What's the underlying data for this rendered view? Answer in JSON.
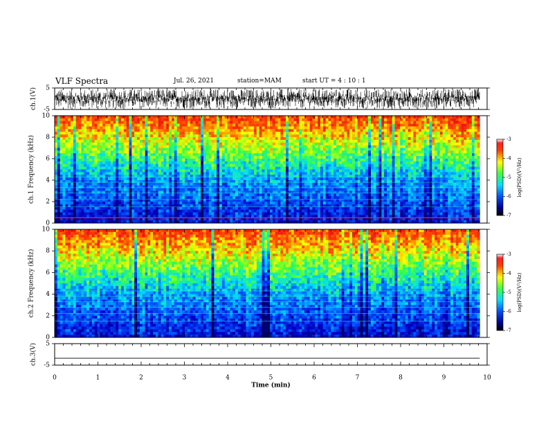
{
  "header": {
    "title": "VLF Spectra",
    "date": "Jul. 26, 2021",
    "station": "station=MAM",
    "start": "start UT =  4 : 10 : 1"
  },
  "chart_data": [
    {
      "type": "line",
      "panel": "ch1-waveform",
      "ylabel": "ch.1(V)",
      "ylim": [
        -5,
        5
      ],
      "yticks": [
        "5",
        "-5"
      ],
      "xlim": [
        0,
        10
      ],
      "data_end_min": 9.83,
      "signal": "dense noise"
    },
    {
      "type": "heatmap",
      "panel": "ch1-spectrogram",
      "ylabel": "ch.1 Frequency (kHz)",
      "ylim": [
        0,
        10
      ],
      "yticks": [
        "0",
        "2",
        "4",
        "6",
        "8",
        "10"
      ],
      "xlim": [
        0,
        10
      ],
      "data_end_min": 9.83,
      "colorbar": {
        "label": "log(PSD)(V²/Hz)",
        "range": [
          -7,
          -3
        ],
        "ticks": [
          "-3",
          "-4",
          "-5",
          "-6",
          "-7"
        ],
        "colormap": "jet"
      }
    },
    {
      "type": "heatmap",
      "panel": "ch2-spectrogram",
      "ylabel": "ch.2 Frequency (kHz)",
      "ylim": [
        0,
        10
      ],
      "yticks": [
        "0",
        "2",
        "4",
        "6",
        "8",
        "10"
      ],
      "xlim": [
        0,
        10
      ],
      "data_end_min": 9.83,
      "colorbar": {
        "label": "log(PSD)(V²/Hz)",
        "range": [
          -7,
          -3
        ],
        "ticks": [
          "-3",
          "-4",
          "-5",
          "-6",
          "-7"
        ],
        "colormap": "jet"
      }
    },
    {
      "type": "line",
      "panel": "ch3-waveform",
      "ylabel": "ch.3(V)",
      "ylim": [
        -5,
        5
      ],
      "yticks": [
        "5",
        "-5"
      ],
      "xlim": [
        0,
        10
      ],
      "x": [
        0,
        9.83
      ],
      "y": [
        -1.8,
        -1.8
      ]
    }
  ],
  "xaxis": {
    "label": "Time (min)",
    "ticks": [
      "0",
      "1",
      "2",
      "3",
      "4",
      "5",
      "6",
      "7",
      "8",
      "9",
      "10"
    ]
  }
}
